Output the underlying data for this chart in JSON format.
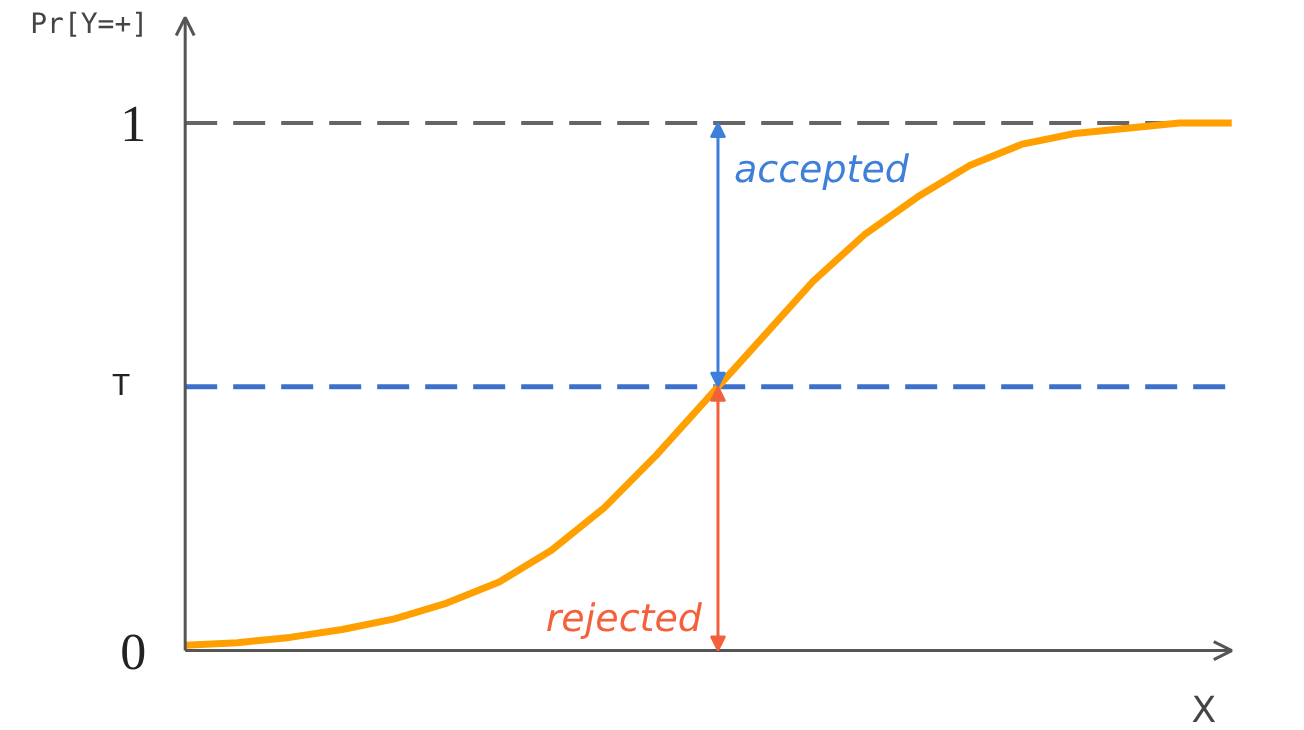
{
  "chart_data": {
    "type": "line",
    "xlabel": "X",
    "ylabel": "Pr[Y=+]",
    "categories": [
      null,
      null,
      null,
      null,
      null,
      null,
      null,
      null,
      null,
      null,
      null,
      null,
      null,
      null,
      null,
      null,
      null,
      null,
      null,
      null,
      null
    ],
    "series": [
      {
        "color": "#ff9f00",
        "values": [
          0.01,
          0.015,
          0.025,
          0.04,
          0.06,
          0.09,
          0.13,
          0.19,
          0.27,
          0.37,
          0.48,
          0.59,
          0.7,
          0.79,
          0.86,
          0.92,
          0.96,
          0.98,
          0.99,
          1.0,
          1.0
        ]
      }
    ],
    "ylim": [
      0,
      1.2
    ],
    "yticks": [
      0,
      1
    ],
    "grid": false,
    "marker": "none",
    "line_style": "solid",
    "ref_lines": [
      {
        "axis": "y",
        "value": 1,
        "color": "#666666",
        "line_style": "dashed"
      },
      {
        "axis": "y",
        "value": 0.5,
        "label": "T",
        "color": "#3d6fcc",
        "line_style": "dashed"
      }
    ],
    "annotations": [
      "accepted",
      "rejected"
    ]
  }
}
